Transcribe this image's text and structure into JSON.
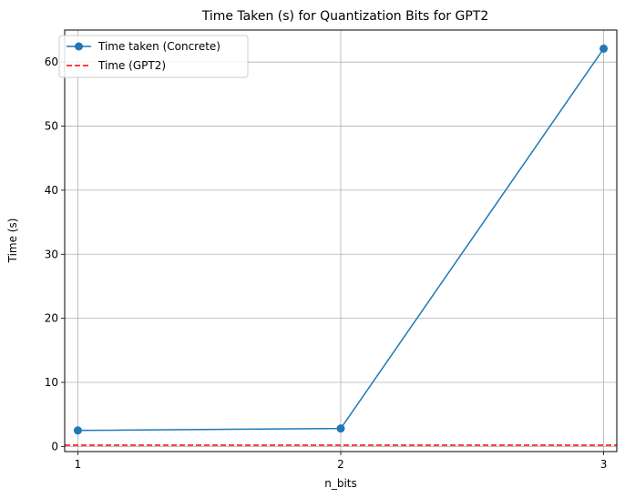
{
  "chart_data": {
    "type": "line",
    "title": "Time Taken (s) for Quantization Bits for GPT2",
    "xlabel": "n_bits",
    "ylabel": "Time (s)",
    "x": [
      1,
      2,
      3
    ],
    "xticks": [
      "1",
      "2",
      "3"
    ],
    "yticks": [
      "0",
      "10",
      "20",
      "30",
      "40",
      "50",
      "60"
    ],
    "xlim": [
      0.95,
      3.05
    ],
    "ylim": [
      -0.8,
      65
    ],
    "grid": true,
    "legend_position": "top-left",
    "series": [
      {
        "name": "Time taken (Concrete)",
        "values": [
          2.5,
          2.8,
          62.1
        ],
        "color": "#1f77b4",
        "style": "solid",
        "marker": "circle"
      }
    ],
    "reference_lines": [
      {
        "name": "Time (GPT2)",
        "value": 0.2,
        "color": "#ff0000",
        "style": "dashed"
      }
    ]
  }
}
